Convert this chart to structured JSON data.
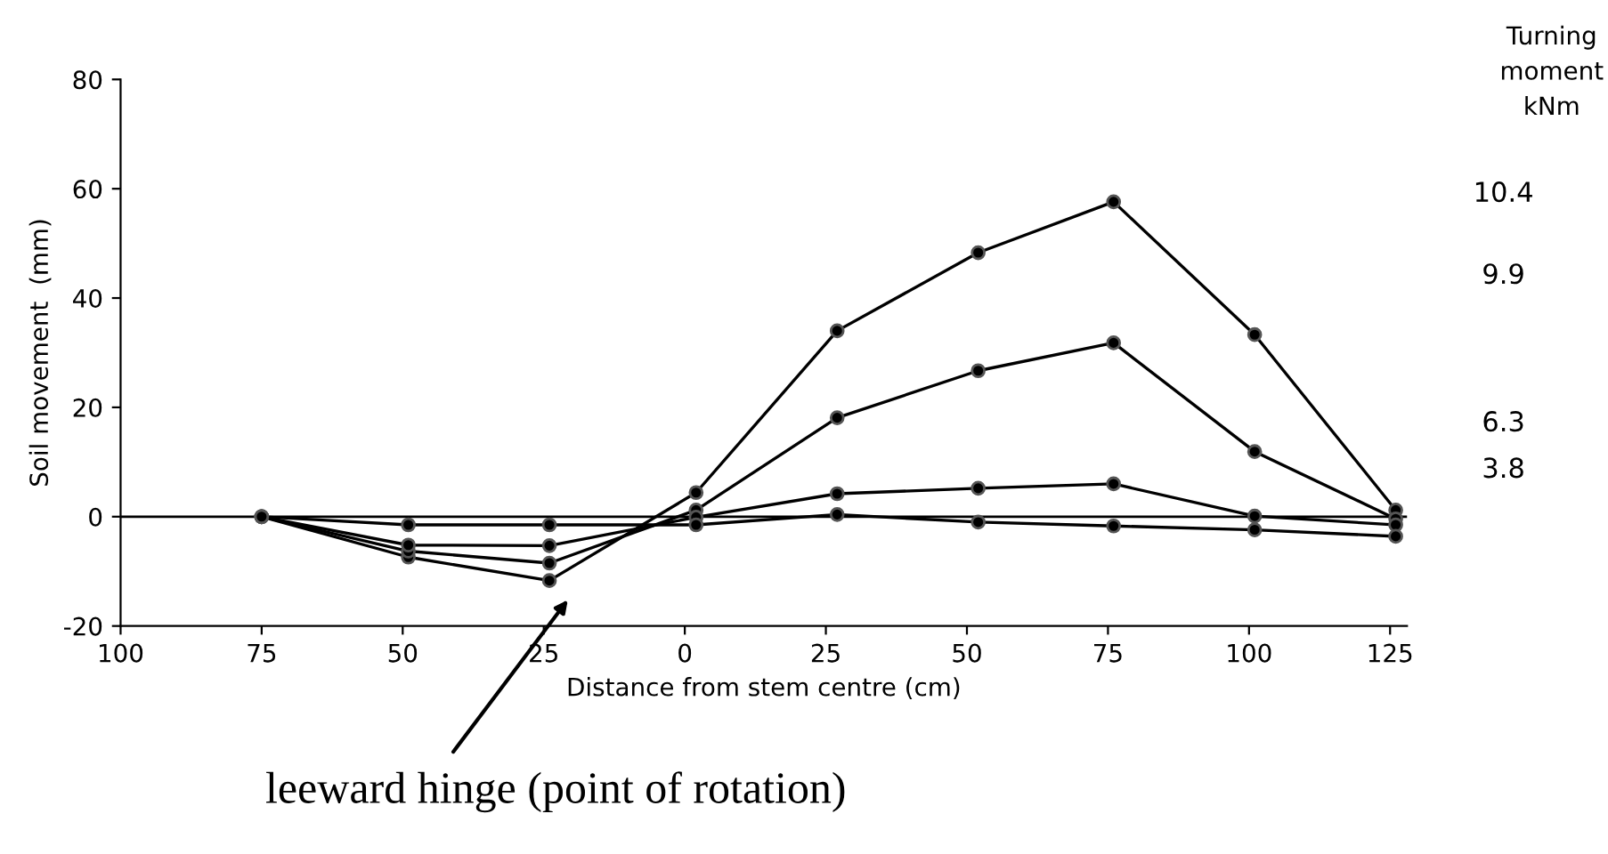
{
  "chart_data": {
    "type": "line",
    "xlabel": "Distance from stem centre (cm)",
    "ylabel": "Soil movement  (mm)",
    "legend_title": "Turning\nmoment\nkNm",
    "x": [
      -75,
      -49,
      -24,
      2,
      27,
      52,
      76,
      101,
      126
    ],
    "series": [
      {
        "name": "10.4",
        "color": "#000000",
        "values": [
          0,
          -7.4,
          -11.7,
          4.4,
          34,
          48.3,
          57.6,
          33.3,
          1.2
        ]
      },
      {
        "name": "9.9",
        "color": "#000000",
        "values": [
          0,
          -6.3,
          -8.5,
          1.2,
          18.1,
          26.7,
          31.8,
          11.9,
          -0.4
        ]
      },
      {
        "name": "6.3",
        "color": "#000000",
        "values": [
          0,
          -5.2,
          -5.3,
          -0.1,
          4.2,
          5.2,
          6.0,
          0.1,
          -1.5
        ]
      },
      {
        "name": "3.8",
        "color": "#000000",
        "values": [
          0,
          -1.5,
          -1.5,
          -1.5,
          0.4,
          -1.0,
          -1.7,
          -2.4,
          -3.6
        ]
      }
    ],
    "xlim": [
      -100,
      128
    ],
    "ylim": [
      -20,
      80
    ],
    "xticks": [
      {
        "value": -100,
        "label": "100"
      },
      {
        "value": -75,
        "label": "75"
      },
      {
        "value": -50,
        "label": "50"
      },
      {
        "value": -25,
        "label": "25"
      },
      0,
      25,
      50,
      75,
      100,
      125
    ],
    "yticks": [
      -20,
      0,
      20,
      40,
      60,
      80
    ],
    "ref_lines": [
      {
        "axis": "y",
        "value": 0,
        "color": "#000000"
      }
    ],
    "annotations": [
      "leeward hinge (point of rotation)"
    ],
    "marker": "circle",
    "line_style": "solid",
    "grid": false,
    "legend": "right"
  }
}
